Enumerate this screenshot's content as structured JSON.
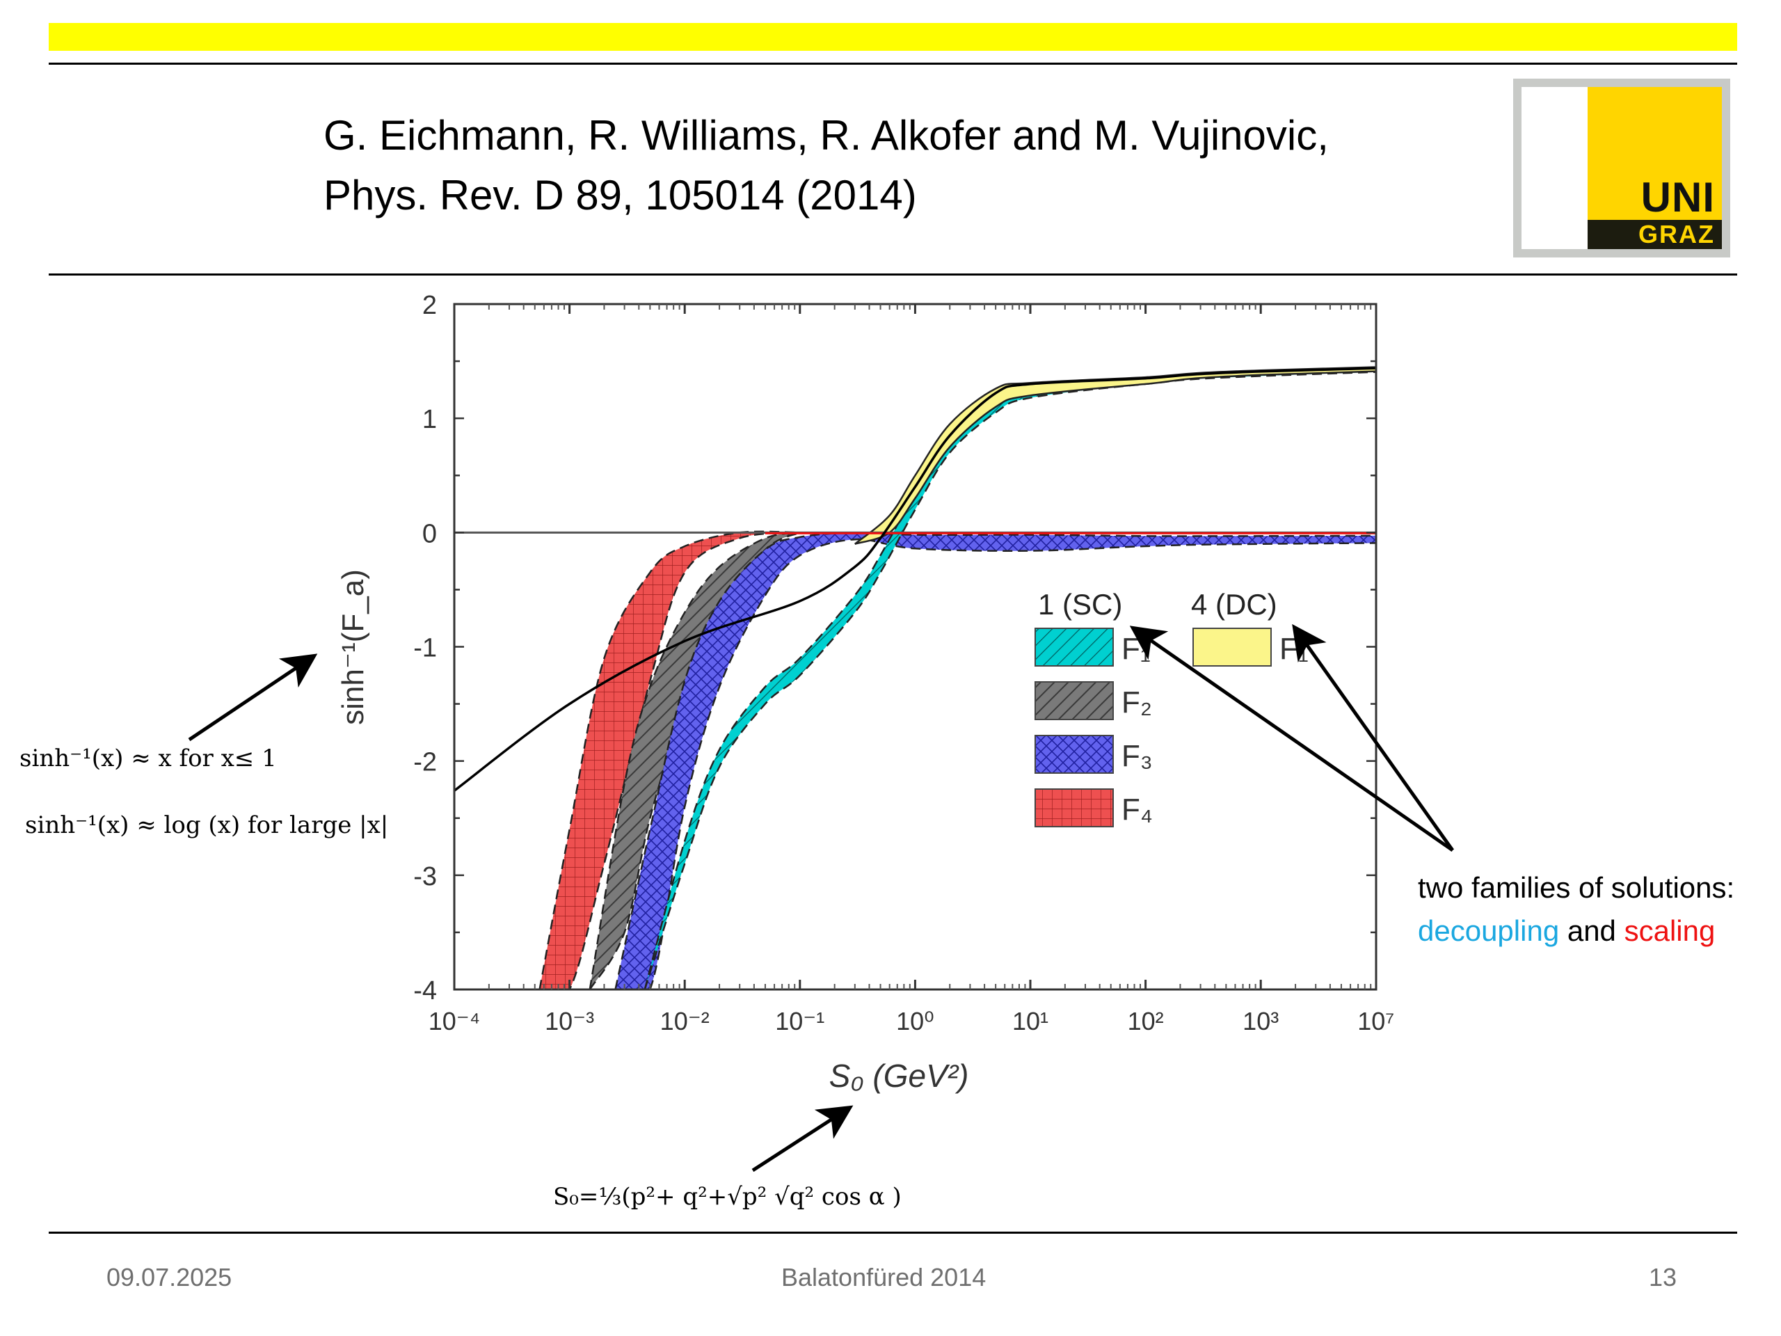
{
  "slide": {
    "citation_line1": "G. Eichmann, R. Williams, R. Alkofer and M. Vujinovic,",
    "citation_line2": "Phys. Rev. D 89, 105014 (2014)",
    "logo_top": "UNI",
    "logo_bottom": "GRAZ"
  },
  "annotations": {
    "asinh_small": "sinh⁻¹(x) ≈ x for x≤ 1",
    "asinh_large": "sinh⁻¹(x) ≈ log (x) for large |x|",
    "s0_definition": "S₀=⅓(p²+ q²+√p² √q²  cos α )",
    "families_text": "two  families of solutions:",
    "word_decoupling": "decoupling",
    "word_and": "and",
    "word_scaling": "scaling",
    "color_decoupling": "#1aa7e0",
    "color_scaling": "#ee1111"
  },
  "footer": {
    "date": "09.07.2025",
    "event": "Balatonfüred 2014",
    "page": "13"
  },
  "chart_data": {
    "type": "area",
    "xlabel": "S₀ (GeV²)",
    "ylabel": "sinh⁻¹(F_a)",
    "xscale": "log",
    "xlim": [
      0.0001,
      10000000
    ],
    "ylim": [
      -4,
      2
    ],
    "x_tick_labels": [
      "10⁻⁴",
      "10⁻³",
      "10⁻²",
      "10⁻¹",
      "10⁰",
      "10¹",
      "10²",
      "10³",
      "10⁷"
    ],
    "y_ticks": [
      2,
      1,
      0,
      -1,
      -2,
      -3,
      -4
    ],
    "legend_placement": "center-right",
    "legend_headers": [
      "1 (SC)",
      "4 (DC)"
    ],
    "series": [
      {
        "name": "F₄",
        "family": "1 (SC)",
        "fill": "#ee5050",
        "pattern": "grid",
        "x": [
          0.00055,
          0.001,
          0.002,
          0.005,
          0.01,
          0.03,
          0.1
        ],
        "upper": [
          -4.0,
          -2.6,
          -1.1,
          -0.35,
          -0.12,
          0.0,
          0.0
        ],
        "lower": [
          -4.0,
          -4.0,
          -2.9,
          -1.3,
          -0.35,
          -0.05,
          0.0
        ]
      },
      {
        "name": "F₂",
        "family": "1 (SC)",
        "fill": "#737373",
        "pattern": "hatch",
        "x": [
          0.0015,
          0.003,
          0.005,
          0.01,
          0.02,
          0.05,
          0.1
        ],
        "upper": [
          -4.0,
          -2.2,
          -1.35,
          -0.7,
          -0.3,
          -0.05,
          0.0
        ],
        "lower": [
          -4.0,
          -3.5,
          -2.5,
          -1.5,
          -0.7,
          -0.15,
          0.0
        ]
      },
      {
        "name": "F₃",
        "family": "1 (SC)",
        "fill": "#6262ee",
        "pattern": "crosshatch",
        "x": [
          0.0025,
          0.005,
          0.01,
          0.02,
          0.05,
          0.1,
          0.3,
          1,
          10,
          100,
          1000,
          10000000
        ],
        "upper": [
          -4.0,
          -2.6,
          -1.3,
          -0.6,
          -0.15,
          -0.04,
          0.0,
          -0.02,
          -0.02,
          -0.03,
          -0.03,
          -0.02
        ],
        "lower": [
          -4.0,
          -4.0,
          -2.4,
          -1.35,
          -0.55,
          -0.2,
          -0.06,
          -0.14,
          -0.16,
          -0.12,
          -0.1,
          -0.07
        ]
      },
      {
        "name": "F₁",
        "family": "1 (SC)",
        "fill": "#00d0d0",
        "pattern": "hatch",
        "x": [
          0.0045,
          0.01,
          0.02,
          0.05,
          0.1,
          0.3,
          0.5,
          1,
          2,
          5,
          10,
          100,
          1000,
          10000000
        ],
        "upper": [
          -4.0,
          -2.7,
          -1.9,
          -1.35,
          -1.1,
          -0.55,
          -0.2,
          0.35,
          0.85,
          1.2,
          1.28,
          1.35,
          1.4,
          1.52
        ],
        "lower": [
          -4.0,
          -2.9,
          -2.05,
          -1.5,
          -1.25,
          -0.7,
          -0.35,
          0.2,
          0.7,
          1.05,
          1.18,
          1.3,
          1.37,
          1.5
        ]
      },
      {
        "name": "F₁",
        "family": "4 (DC)",
        "fill": "#fbf58a",
        "pattern": "solid",
        "x": [
          0.3,
          0.6,
          1,
          2,
          5,
          10,
          100,
          1000,
          10000000
        ],
        "upper": [
          -0.1,
          0.15,
          0.5,
          0.95,
          1.26,
          1.31,
          1.36,
          1.42,
          1.53
        ],
        "lower": [
          -0.1,
          0.0,
          0.3,
          0.75,
          1.1,
          1.2,
          1.3,
          1.38,
          1.5
        ]
      }
    ],
    "lines": [
      {
        "name": "sinh⁻¹",
        "color": "#000000",
        "x": [
          0.0001,
          0.001,
          0.01,
          0.1,
          0.3,
          0.5,
          1,
          2,
          5,
          10,
          100,
          1000,
          10000000
        ],
        "y": [
          -2.26,
          -1.5,
          -0.95,
          -0.6,
          -0.3,
          -0.05,
          0.4,
          0.85,
          1.22,
          1.3,
          1.35,
          1.41,
          1.52
        ]
      }
    ]
  }
}
